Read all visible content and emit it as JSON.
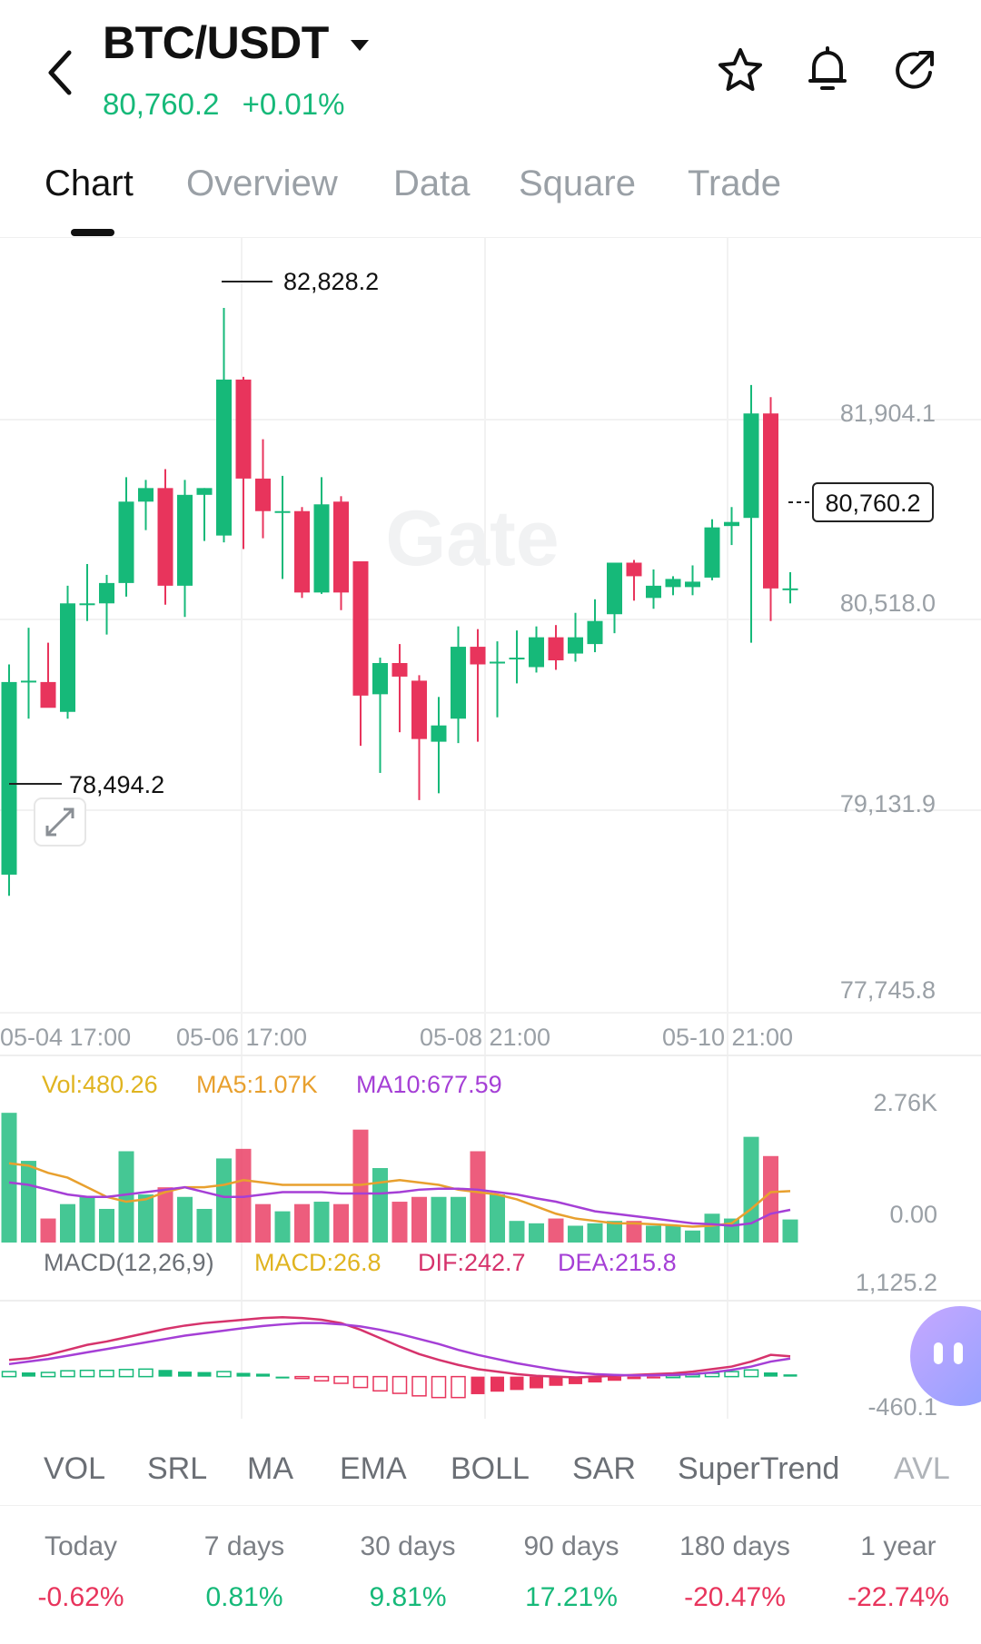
{
  "header": {
    "pair": "BTC/USDT",
    "price": "80,760.2",
    "change": "+0.01%",
    "icons": [
      "back-arrow-icon",
      "dropdown-caret-icon",
      "star-icon",
      "bell-icon",
      "share-icon"
    ]
  },
  "tabs": [
    "Chart",
    "Overview",
    "Data",
    "Square",
    "Trade"
  ],
  "active_tab": "Chart",
  "watermark": "Gate",
  "price_panel": {
    "y_ticks": [
      "81,904.1",
      "80,518.0",
      "79,131.9",
      "77,745.8"
    ],
    "high_label": "82,828.2",
    "low_label": "78,494.2",
    "current_label": "80,760.2",
    "x_ticks": [
      "05-04 17:00",
      "05-06 17:00",
      "05-08 21:00",
      "05-10 21:00"
    ]
  },
  "volume_panel": {
    "vol_label": "Vol:480.26",
    "ma5_label": "MA5:1.07K",
    "ma10_label": "MA10:677.59",
    "y_top": "2.76K",
    "y_bottom": "0.00"
  },
  "macd_panel": {
    "title": "MACD(12,26,9)",
    "macd_label": "MACD:26.8",
    "dif_label": "DIF:242.7",
    "dea_label": "DEA:215.8",
    "y_top": "1,125.2",
    "y_bottom": "-460.1"
  },
  "indicators": [
    "VOL",
    "SRL",
    "MA",
    "EMA",
    "BOLL",
    "SAR",
    "SuperTrend",
    "AVL"
  ],
  "periods": [
    {
      "label": "Today",
      "value": "-0.62%"
    },
    {
      "label": "7 days",
      "value": "0.81%"
    },
    {
      "label": "30 days",
      "value": "9.81%"
    },
    {
      "label": "90 days",
      "value": "17.21%"
    },
    {
      "label": "180 days",
      "value": "-20.47%"
    },
    {
      "label": "1 year",
      "value": "-22.74%"
    }
  ],
  "colors": {
    "up": "#16b979",
    "down": "#e8345c",
    "ma5": "#e8a02e",
    "ma10": "#a53fd6",
    "vol_label": "#e0b420",
    "dif": "#d6336c",
    "dea": "#a53fd6"
  },
  "chart_data": {
    "type": "candlestick",
    "ylim": [
      77745.8,
      83290.2
    ],
    "candles": [
      {
        "o": 78650,
        "h": 80200,
        "l": 78494.2,
        "c": 80070
      },
      {
        "o": 80070,
        "h": 80470,
        "l": 79800,
        "c": 80080
      },
      {
        "o": 80070,
        "h": 80360,
        "l": 79900,
        "c": 79880
      },
      {
        "o": 79850,
        "h": 80780,
        "l": 79800,
        "c": 80650
      },
      {
        "o": 80650,
        "h": 80940,
        "l": 80520,
        "c": 80650
      },
      {
        "o": 80650,
        "h": 80860,
        "l": 80420,
        "c": 80800
      },
      {
        "o": 80800,
        "h": 81580,
        "l": 80700,
        "c": 81400
      },
      {
        "o": 81400,
        "h": 81560,
        "l": 81190,
        "c": 81500
      },
      {
        "o": 81500,
        "h": 81640,
        "l": 80640,
        "c": 80780
      },
      {
        "o": 80780,
        "h": 81560,
        "l": 80550,
        "c": 81450
      },
      {
        "o": 81450,
        "h": 81500,
        "l": 81110,
        "c": 81500
      },
      {
        "o": 81150,
        "h": 82828.2,
        "l": 81100,
        "c": 82300
      },
      {
        "o": 82300,
        "h": 82320,
        "l": 81050,
        "c": 81570
      },
      {
        "o": 81570,
        "h": 81860,
        "l": 81130,
        "c": 81330
      },
      {
        "o": 81330,
        "h": 81590,
        "l": 80830,
        "c": 81330
      },
      {
        "o": 81330,
        "h": 81360,
        "l": 80690,
        "c": 80730
      },
      {
        "o": 80730,
        "h": 81580,
        "l": 80720,
        "c": 81380
      },
      {
        "o": 81400,
        "h": 81440,
        "l": 80600,
        "c": 80730
      },
      {
        "o": 80960,
        "h": 80960,
        "l": 79600,
        "c": 79970
      },
      {
        "o": 79980,
        "h": 80250,
        "l": 79400,
        "c": 80210
      },
      {
        "o": 80210,
        "h": 80350,
        "l": 79700,
        "c": 80110
      },
      {
        "o": 80080,
        "h": 80120,
        "l": 79200,
        "c": 79650
      },
      {
        "o": 79630,
        "h": 79960,
        "l": 79250,
        "c": 79750
      },
      {
        "o": 79800,
        "h": 80480,
        "l": 79620,
        "c": 80330
      },
      {
        "o": 80330,
        "h": 80460,
        "l": 79630,
        "c": 80200
      },
      {
        "o": 80220,
        "h": 80370,
        "l": 79810,
        "c": 80220
      },
      {
        "o": 80240,
        "h": 80450,
        "l": 80060,
        "c": 80250
      },
      {
        "o": 80180,
        "h": 80480,
        "l": 80140,
        "c": 80400
      },
      {
        "o": 80400,
        "h": 80490,
        "l": 80160,
        "c": 80230
      },
      {
        "o": 80280,
        "h": 80580,
        "l": 80220,
        "c": 80400
      },
      {
        "o": 80350,
        "h": 80680,
        "l": 80290,
        "c": 80520
      },
      {
        "o": 80570,
        "h": 80930,
        "l": 80430,
        "c": 80950
      },
      {
        "o": 80950,
        "h": 80970,
        "l": 80670,
        "c": 80850
      },
      {
        "o": 80690,
        "h": 80900,
        "l": 80610,
        "c": 80780
      },
      {
        "o": 80770,
        "h": 80850,
        "l": 80710,
        "c": 80830
      },
      {
        "o": 80770,
        "h": 80930,
        "l": 80710,
        "c": 80810
      },
      {
        "o": 80840,
        "h": 81270,
        "l": 80820,
        "c": 81210
      },
      {
        "o": 81220,
        "h": 81360,
        "l": 81080,
        "c": 81250
      },
      {
        "o": 81280,
        "h": 82260,
        "l": 80360,
        "c": 82050
      },
      {
        "o": 82050,
        "h": 82170,
        "l": 80520,
        "c": 80760
      },
      {
        "o": 80760,
        "h": 80880,
        "l": 80650,
        "c": 80760.2
      }
    ],
    "volume": [
      2.7,
      1.7,
      0.5,
      0.8,
      0.95,
      0.7,
      1.9,
      1.0,
      1.15,
      0.95,
      0.7,
      1.75,
      1.95,
      0.8,
      0.65,
      0.8,
      0.85,
      0.8,
      2.35,
      1.55,
      0.85,
      0.95,
      0.95,
      0.95,
      1.9,
      1.0,
      0.45,
      0.4,
      0.5,
      0.35,
      0.4,
      0.45,
      0.45,
      0.35,
      0.35,
      0.25,
      0.6,
      0.5,
      2.2,
      1.8,
      0.48
    ],
    "ma5": [
      1.65,
      1.6,
      1.45,
      1.35,
      1.15,
      0.95,
      0.85,
      0.9,
      1.05,
      1.15,
      1.15,
      1.2,
      1.3,
      1.25,
      1.2,
      1.2,
      1.2,
      1.2,
      1.2,
      1.25,
      1.3,
      1.25,
      1.2,
      1.1,
      1.05,
      1.0,
      0.9,
      0.75,
      0.6,
      0.5,
      0.45,
      0.4,
      0.4,
      0.38,
      0.36,
      0.33,
      0.35,
      0.4,
      0.7,
      1.05,
      1.07
    ],
    "ma10": [
      1.25,
      1.2,
      1.1,
      1.0,
      0.95,
      0.95,
      1.0,
      1.05,
      1.1,
      1.15,
      1.05,
      0.95,
      0.95,
      1.0,
      1.05,
      1.05,
      1.05,
      1.02,
      1.02,
      1.02,
      1.05,
      1.1,
      1.12,
      1.12,
      1.1,
      1.05,
      1.0,
      0.92,
      0.85,
      0.75,
      0.65,
      0.6,
      0.55,
      0.5,
      0.45,
      0.4,
      0.38,
      0.35,
      0.4,
      0.6,
      0.68
    ],
    "vol_ylim": [
      0,
      2.76
    ],
    "macd_hist": [
      60,
      50,
      50,
      70,
      75,
      75,
      85,
      90,
      80,
      60,
      55,
      60,
      45,
      35,
      0,
      -20,
      -50,
      -80,
      -130,
      -170,
      -200,
      -230,
      -250,
      -250,
      -210,
      -180,
      -160,
      -140,
      -110,
      -90,
      -70,
      -50,
      -30,
      -10,
      10,
      20,
      40,
      60,
      80,
      50,
      26.8
    ],
    "dif": [
      200,
      220,
      260,
      320,
      380,
      420,
      470,
      520,
      570,
      610,
      640,
      660,
      680,
      700,
      710,
      700,
      680,
      640,
      560,
      460,
      360,
      270,
      200,
      140,
      90,
      60,
      30,
      10,
      0,
      -10,
      0,
      10,
      20,
      30,
      40,
      60,
      90,
      120,
      180,
      260,
      242.7
    ],
    "dea": [
      150,
      180,
      210,
      250,
      290,
      330,
      370,
      410,
      450,
      490,
      520,
      550,
      580,
      605,
      625,
      640,
      640,
      625,
      600,
      560,
      510,
      450,
      390,
      320,
      260,
      210,
      160,
      120,
      80,
      50,
      30,
      20,
      15,
      15,
      20,
      30,
      50,
      80,
      120,
      180,
      215.8
    ],
    "macd_ylim": [
      -460.1,
      1125.2
    ]
  }
}
